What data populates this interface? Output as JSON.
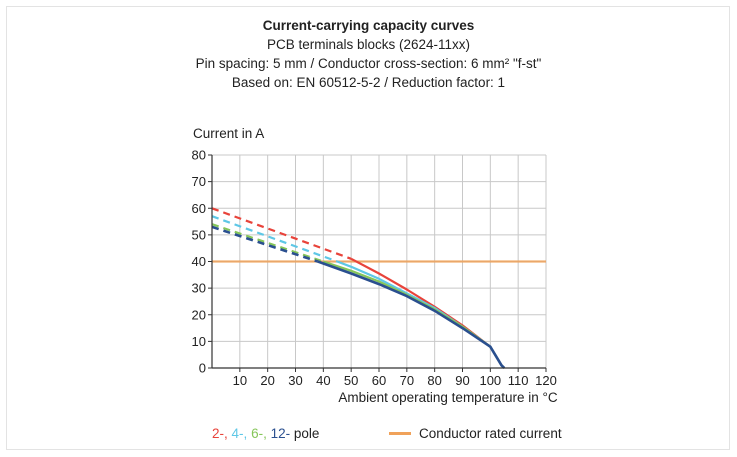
{
  "colors": {
    "pole_2": "#e8433a",
    "pole_4": "#5ec7e6",
    "pole_6": "#86c65a",
    "pole_12": "#2a4f8f",
    "rated": "#f0a25a",
    "grid": "#c8c8c8",
    "axis": "#333333"
  },
  "chart_data": {
    "type": "line",
    "title": "Current-carrying capacity curves",
    "subtitle_lines": [
      "PCB terminals blocks (2624-11xx)",
      "Pin spacing: 5 mm / Conductor cross-section: 6 mm² \"f-st\"",
      "Based on: EN 60512-5-2 / Reduction factor: 1"
    ],
    "xlabel": "Ambient operating temperature in °C",
    "ylabel": "Current in A",
    "xlim": [
      0,
      120
    ],
    "ylim": [
      0,
      80
    ],
    "x_ticks": [
      10,
      20,
      30,
      40,
      50,
      60,
      70,
      80,
      90,
      100,
      110,
      120
    ],
    "x_tick_labels": [
      "10",
      "20",
      "30",
      "40",
      "50",
      "60",
      "70",
      "80",
      "90",
      "100",
      "110",
      "120"
    ],
    "y_ticks": [
      0,
      10,
      20,
      30,
      40,
      50,
      60,
      70,
      80
    ],
    "y_tick_labels": [
      "0",
      "10",
      "20",
      "30",
      "40",
      "50",
      "60",
      "70",
      "80"
    ],
    "grid": true,
    "series": [
      {
        "name": "2-pole",
        "color_key": "pole_2",
        "dashed_part": [
          [
            0,
            60
          ],
          [
            50,
            41
          ]
        ],
        "solid_part": [
          [
            50,
            41
          ],
          [
            60,
            35.5
          ],
          [
            70,
            29.5
          ],
          [
            80,
            23
          ],
          [
            90,
            16
          ],
          [
            100,
            8
          ],
          [
            104,
            1
          ],
          [
            105,
            0
          ]
        ]
      },
      {
        "name": "4-pole",
        "color_key": "pole_4",
        "dashed_part": [
          [
            0,
            57
          ],
          [
            45,
            40
          ]
        ],
        "solid_part": [
          [
            45,
            40
          ],
          [
            50,
            38
          ],
          [
            60,
            33.5
          ],
          [
            70,
            28
          ],
          [
            80,
            22.5
          ],
          [
            90,
            15.5
          ],
          [
            100,
            8
          ],
          [
            104,
            1
          ],
          [
            105,
            0
          ]
        ]
      },
      {
        "name": "6-pole",
        "color_key": "pole_6",
        "dashed_part": [
          [
            0,
            54
          ],
          [
            40,
            40
          ]
        ],
        "solid_part": [
          [
            40,
            40
          ],
          [
            50,
            36.5
          ],
          [
            60,
            32.5
          ],
          [
            70,
            27.5
          ],
          [
            80,
            22
          ],
          [
            90,
            15.5
          ],
          [
            100,
            8
          ],
          [
            104,
            1
          ],
          [
            105,
            0
          ]
        ]
      },
      {
        "name": "12-pole",
        "color_key": "pole_12",
        "dashed_part": [
          [
            0,
            53
          ],
          [
            38,
            40
          ]
        ],
        "solid_part": [
          [
            38,
            40
          ],
          [
            50,
            35.5
          ],
          [
            60,
            31.5
          ],
          [
            70,
            27
          ],
          [
            80,
            21.5
          ],
          [
            90,
            15
          ],
          [
            100,
            8
          ],
          [
            104,
            1
          ],
          [
            105,
            0
          ]
        ]
      }
    ],
    "reference_line": {
      "name": "Conductor rated current",
      "y": 40,
      "color_key": "rated"
    }
  },
  "legend": {
    "pole_2": "2-,",
    "pole_4": "4-,",
    "pole_6": "6-,",
    "pole_12": "12-",
    "pole_suffix": "pole",
    "rated": "Conductor rated current"
  }
}
